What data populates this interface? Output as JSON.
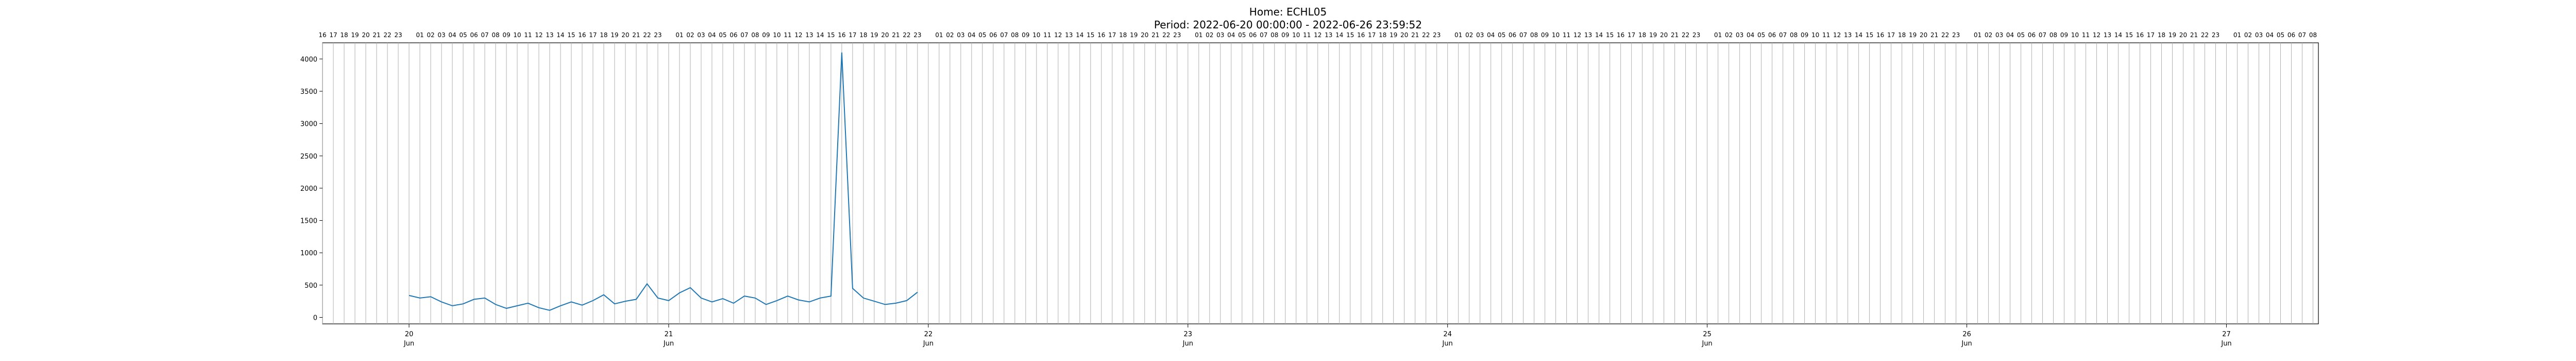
{
  "chart_data": {
    "type": "line",
    "title": "Home: ECHL05",
    "subtitle": "Period: 2022-06-20 00:00:00 - 2022-06-26 23:59:52",
    "xlabel": "",
    "ylabel": "",
    "xlim": [
      "2022-06-19 16:00",
      "2022-06-27 08:30"
    ],
    "ylim": [
      -100,
      4250
    ],
    "y_ticks": [
      0,
      500,
      1000,
      1500,
      2000,
      2500,
      3000,
      3500,
      4000
    ],
    "x_major_ticks": [
      {
        "day": "20",
        "month": "Jun",
        "t": "2022-06-20 00:00"
      },
      {
        "day": "21",
        "month": "Jun",
        "t": "2022-06-21 00:00"
      },
      {
        "day": "22",
        "month": "Jun",
        "t": "2022-06-22 00:00"
      },
      {
        "day": "23",
        "month": "Jun",
        "t": "2022-06-23 00:00"
      },
      {
        "day": "24",
        "month": "Jun",
        "t": "2022-06-24 00:00"
      },
      {
        "day": "25",
        "month": "Jun",
        "t": "2022-06-25 00:00"
      },
      {
        "day": "26",
        "month": "Jun",
        "t": "2022-06-26 00:00"
      },
      {
        "day": "27",
        "month": "Jun",
        "t": "2022-06-27 00:00"
      }
    ],
    "hour_ticks_top": "hourly labels 00-23 along the top axis with vertical gridlines",
    "grid": "vertical hourly lines",
    "line_color": "#1f77b4",
    "series": [
      {
        "values": [
          [
            "2022-06-20 00:00",
            340
          ],
          [
            "2022-06-20 01:00",
            300
          ],
          [
            "2022-06-20 02:00",
            320
          ],
          [
            "2022-06-20 03:00",
            240
          ],
          [
            "2022-06-20 04:00",
            180
          ],
          [
            "2022-06-20 05:00",
            210
          ],
          [
            "2022-06-20 06:00",
            280
          ],
          [
            "2022-06-20 07:00",
            300
          ],
          [
            "2022-06-20 08:00",
            200
          ],
          [
            "2022-06-20 09:00",
            140
          ],
          [
            "2022-06-20 10:00",
            180
          ],
          [
            "2022-06-20 11:00",
            220
          ],
          [
            "2022-06-20 12:00",
            150
          ],
          [
            "2022-06-20 13:00",
            110
          ],
          [
            "2022-06-20 14:00",
            180
          ],
          [
            "2022-06-20 15:00",
            240
          ],
          [
            "2022-06-20 16:00",
            190
          ],
          [
            "2022-06-20 17:00",
            260
          ],
          [
            "2022-06-20 18:00",
            350
          ],
          [
            "2022-06-20 19:00",
            210
          ],
          [
            "2022-06-20 20:00",
            250
          ],
          [
            "2022-06-20 21:00",
            280
          ],
          [
            "2022-06-20 22:00",
            520
          ],
          [
            "2022-06-20 23:00",
            300
          ],
          [
            "2022-06-21 00:00",
            260
          ],
          [
            "2022-06-21 01:00",
            380
          ],
          [
            "2022-06-21 02:00",
            460
          ],
          [
            "2022-06-21 03:00",
            300
          ],
          [
            "2022-06-21 04:00",
            240
          ],
          [
            "2022-06-21 05:00",
            290
          ],
          [
            "2022-06-21 06:00",
            220
          ],
          [
            "2022-06-21 07:00",
            330
          ],
          [
            "2022-06-21 08:00",
            300
          ],
          [
            "2022-06-21 09:00",
            200
          ],
          [
            "2022-06-21 10:00",
            260
          ],
          [
            "2022-06-21 11:00",
            330
          ],
          [
            "2022-06-21 12:00",
            270
          ],
          [
            "2022-06-21 13:00",
            240
          ],
          [
            "2022-06-21 14:00",
            300
          ],
          [
            "2022-06-21 15:00",
            330
          ],
          [
            "2022-06-21 16:00",
            4100
          ],
          [
            "2022-06-21 17:00",
            450
          ],
          [
            "2022-06-21 18:00",
            300
          ],
          [
            "2022-06-21 19:00",
            250
          ],
          [
            "2022-06-21 20:00",
            200
          ],
          [
            "2022-06-21 21:00",
            220
          ],
          [
            "2022-06-21 22:00",
            260
          ],
          [
            "2022-06-21 23:00",
            390
          ]
        ]
      }
    ]
  }
}
